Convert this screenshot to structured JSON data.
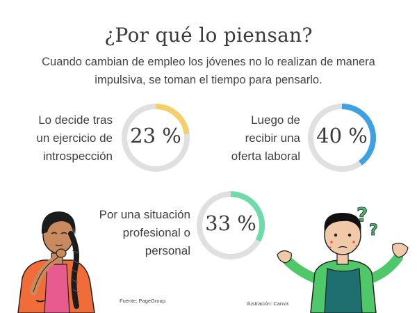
{
  "title": "¿Por qué lo piensan?",
  "subtitle": "Cuando cambian de empleo los jóvenes no lo realizan de manera impulsiva, se toman el tiempo para pensarlo.",
  "chart_data": {
    "type": "pie",
    "title": "¿Por qué lo piensan?",
    "track_color": "#e0e0e0",
    "items": [
      {
        "label_lines": [
          "Lo decide tras",
          "un ejercicio de",
          "introspección"
        ],
        "value": 23,
        "display": "23 %",
        "color": "#f5cf6a"
      },
      {
        "label_lines": [
          "Luego de",
          "recibir una",
          "oferta laboral"
        ],
        "value": 40,
        "display": "40 %",
        "color": "#3da1e3"
      },
      {
        "label_lines": [
          "Por una situación",
          "profesional o",
          "personal"
        ],
        "value": 33,
        "display": "33 %",
        "color": "#6fdba8"
      }
    ]
  },
  "credits": {
    "source": "Fuente: PageGroup",
    "illustration": "Ilustración: Canva"
  },
  "illustrations": {
    "left": "thinking-woman-illustration",
    "right": "confused-man-illustration"
  }
}
